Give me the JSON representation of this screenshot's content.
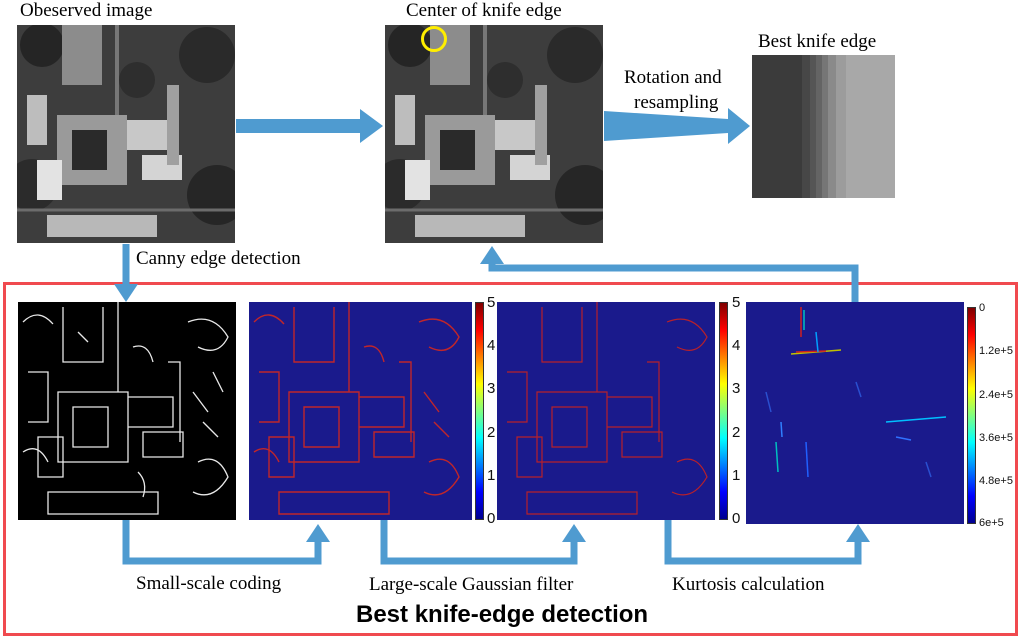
{
  "labels": {
    "observed_image": "Obeserved image",
    "center_of_knife_edge": "Center of knife edge",
    "best_knife_edge": "Best knife edge",
    "rotation_line1": "Rotation and",
    "rotation_line2": "resampling",
    "canny": "Canny edge detection",
    "small_scale": "Small-scale coding",
    "large_scale": "Large-scale Gaussian filter",
    "kurtosis": "Kurtosis calculation",
    "detection_title": "Best knife-edge detection"
  },
  "colorbar1": {
    "ticks": [
      "5",
      "4",
      "3",
      "2",
      "1",
      "0"
    ]
  },
  "colorbar2": {
    "ticks": [
      "5",
      "4",
      "3",
      "2",
      "1",
      "0"
    ]
  },
  "colorbar3": {
    "ticks": [
      "0",
      "1.2e+5",
      "2.4e+5",
      "3.6e+5",
      "4.8e+5",
      "6e+5"
    ]
  },
  "colors": {
    "frame": "#f04a4f",
    "arrow": "#4f9bd0",
    "marker": "#ffee00",
    "panel_blue": "#1a1a8c"
  }
}
